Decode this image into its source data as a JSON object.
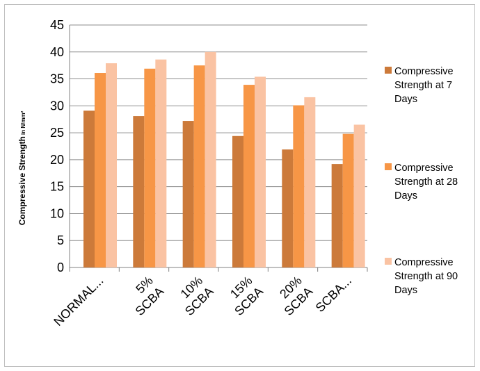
{
  "chart_data": {
    "type": "bar",
    "categories": [
      "NORMAL...",
      "SCBA 5%",
      "SCBA 10%",
      "SCBA 15%",
      "SCBA 20%",
      "SCBA..."
    ],
    "category_lines": [
      [
        "NORMAL..."
      ],
      [
        "5%",
        "SCBA"
      ],
      [
        "10%",
        "SCBA"
      ],
      [
        "15%",
        "SCBA"
      ],
      [
        "20%",
        "SCBA"
      ],
      [
        "SCBA..."
      ]
    ],
    "series": [
      {
        "name": "Compressive Strength at 7 Days",
        "name_lines": [
          "Compressive",
          "Strength at 7",
          "Days"
        ],
        "color": "#cc7a3a",
        "values": [
          29.1,
          28.1,
          27.2,
          24.4,
          21.9,
          19.2
        ]
      },
      {
        "name": "Compressive Strength at 28 Days",
        "name_lines": [
          "Compressive",
          "Strength at 28",
          "Days"
        ],
        "color": "#f79646",
        "values": [
          36.1,
          36.9,
          37.5,
          33.9,
          30.1,
          24.8
        ]
      },
      {
        "name": "Compressive Strength at 90 Days",
        "name_lines": [
          "Compressive",
          "Strength at 90",
          "Days"
        ],
        "color": "#fac3a3",
        "values": [
          37.9,
          38.6,
          40.0,
          35.4,
          31.6,
          26.5
        ]
      }
    ],
    "ylabel_main": "Compressive Strength",
    "ylabel_small": "in N/mm²",
    "yticks": [
      0,
      5,
      10,
      15,
      20,
      25,
      30,
      35,
      40,
      45
    ],
    "ylim": [
      0,
      45
    ],
    "grid": true,
    "legend_position": "right"
  }
}
